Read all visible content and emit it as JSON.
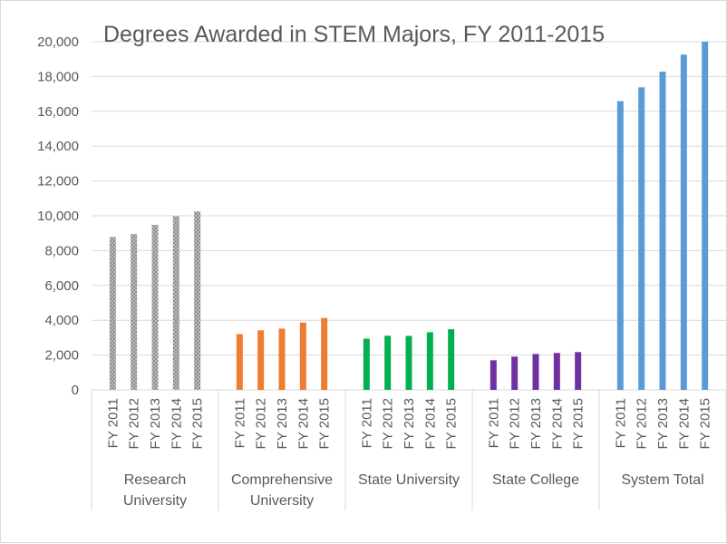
{
  "chart_data": {
    "type": "bar",
    "title": "Degrees Awarded in STEM Majors, FY 2011-2015",
    "xlabel": "",
    "ylabel": "",
    "ylim": [
      0,
      20000
    ],
    "yticks": [
      0,
      2000,
      4000,
      6000,
      8000,
      10000,
      12000,
      14000,
      16000,
      18000,
      20000
    ],
    "ytick_labels": [
      "0",
      "2,000",
      "4,000",
      "6,000",
      "8,000",
      "10,000",
      "12,000",
      "14,000",
      "16,000",
      "18,000",
      "20,000"
    ],
    "grid": true,
    "legend": "none",
    "categories": [
      "FY 2011",
      "FY 2012",
      "FY 2013",
      "FY 2014",
      "FY 2015"
    ],
    "groups": [
      {
        "label_lines": [
          "Research",
          "University"
        ],
        "color": "#a5a5a5",
        "pattern": "dotted",
        "values": [
          8780,
          8950,
          9480,
          9970,
          10250
        ]
      },
      {
        "label_lines": [
          "Comprehensive",
          "University"
        ],
        "color": "#ed7d31",
        "pattern": "solid",
        "values": [
          3200,
          3420,
          3520,
          3870,
          4130
        ]
      },
      {
        "label_lines": [
          "State University"
        ],
        "color": "#00b050",
        "pattern": "solid",
        "values": [
          2940,
          3110,
          3100,
          3310,
          3480
        ]
      },
      {
        "label_lines": [
          "State College"
        ],
        "color": "#7030a0",
        "pattern": "solid",
        "values": [
          1700,
          1910,
          2060,
          2120,
          2170
        ]
      },
      {
        "label_lines": [
          "System Total"
        ],
        "color": "#5b9bd5",
        "pattern": "solid",
        "values": [
          16590,
          17380,
          18280,
          19260,
          20000
        ]
      }
    ]
  }
}
